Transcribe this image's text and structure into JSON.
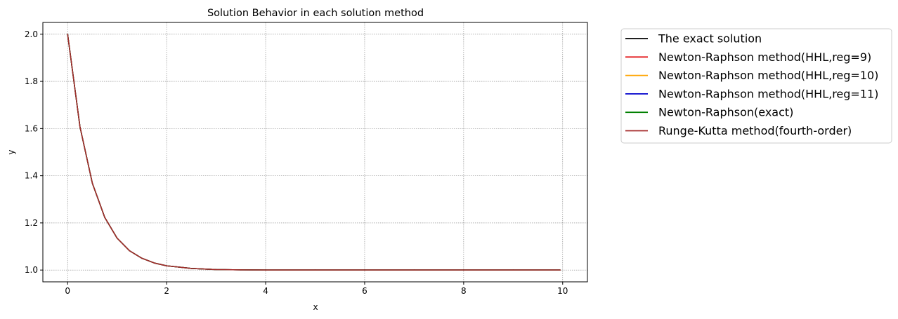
{
  "chart_data": {
    "type": "line",
    "title": "Solution Behavior in each solution method",
    "xlabel": "x",
    "ylabel": "y",
    "xlim": [
      -0.5,
      10.5
    ],
    "ylim": [
      0.95,
      2.05
    ],
    "xticks": [
      0,
      2,
      4,
      6,
      8,
      10
    ],
    "yticks": [
      1.0,
      1.2,
      1.4,
      1.6,
      1.8,
      2.0
    ],
    "xtick_labels": [
      "0",
      "2",
      "4",
      "6",
      "8",
      "10"
    ],
    "ytick_labels": [
      "1.0",
      "1.2",
      "1.4",
      "1.6",
      "1.8",
      "2.0"
    ],
    "grid": true,
    "legend_position": "outside-right",
    "x": [
      0,
      0.25,
      0.5,
      0.75,
      1.0,
      1.25,
      1.5,
      1.75,
      2.0,
      2.5,
      3.0,
      3.5,
      4.0,
      5.0,
      6.0,
      7.0,
      8.0,
      9.0,
      9.95
    ],
    "series": [
      {
        "name": "The exact solution",
        "color": "#000000",
        "values": [
          2.0,
          1.607,
          1.368,
          1.223,
          1.135,
          1.082,
          1.05,
          1.03,
          1.018,
          1.007,
          1.002,
          1.001,
          1.0,
          1.0,
          1.0,
          1.0,
          1.0,
          1.0,
          1.0
        ]
      },
      {
        "name": "Newton-Raphson method(HHL,reg=9)",
        "color": "#e41a1c",
        "values": [
          2.0,
          1.607,
          1.368,
          1.223,
          1.135,
          1.082,
          1.05,
          1.03,
          1.018,
          1.007,
          1.002,
          1.001,
          1.0,
          1.0,
          1.0,
          1.0,
          1.0,
          1.0,
          1.0
        ]
      },
      {
        "name": "Newton-Raphson method(HHL,reg=10)",
        "color": "#ffa500",
        "values": [
          2.0,
          1.607,
          1.368,
          1.223,
          1.135,
          1.082,
          1.05,
          1.03,
          1.018,
          1.007,
          1.002,
          1.001,
          1.0,
          1.0,
          1.0,
          1.0,
          1.0,
          1.0,
          1.0
        ]
      },
      {
        "name": "Newton-Raphson method(HHL,reg=11)",
        "color": "#0000cc",
        "values": [
          2.0,
          1.607,
          1.368,
          1.223,
          1.135,
          1.082,
          1.05,
          1.03,
          1.018,
          1.007,
          1.002,
          1.001,
          1.0,
          1.0,
          1.0,
          1.0,
          1.0,
          1.0,
          1.0
        ]
      },
      {
        "name": "Newton-Raphson(exact)",
        "color": "#008000",
        "values": [
          2.0,
          1.607,
          1.368,
          1.223,
          1.135,
          1.082,
          1.05,
          1.03,
          1.018,
          1.007,
          1.002,
          1.001,
          1.0,
          1.0,
          1.0,
          1.0,
          1.0,
          1.0,
          1.0
        ]
      },
      {
        "name": "Runge-Kutta method(fourth-order)",
        "color": "#a52a2a",
        "values": [
          2.0,
          1.607,
          1.368,
          1.223,
          1.135,
          1.082,
          1.05,
          1.03,
          1.018,
          1.007,
          1.002,
          1.001,
          1.0,
          1.0,
          1.0,
          1.0,
          1.0,
          1.0,
          1.0
        ]
      }
    ]
  }
}
